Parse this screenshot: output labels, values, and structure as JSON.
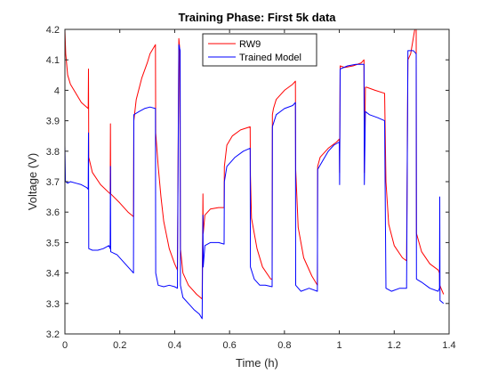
{
  "chart_data": {
    "type": "line",
    "title": "Training Phase: First 5k data",
    "xlabel": "Time (h)",
    "ylabel": "Voltage (V)",
    "xlim": [
      0,
      1.4
    ],
    "ylim": [
      3.2,
      4.2
    ],
    "xticks": [
      0,
      0.2,
      0.4,
      0.6,
      0.8,
      1,
      1.2,
      1.4
    ],
    "xtick_labels": [
      "0",
      "0.2",
      "0.4",
      "0.6",
      "0.8",
      "1",
      "1.2",
      "1.4"
    ],
    "yticks": [
      3.2,
      3.3,
      3.4,
      3.5,
      3.6,
      3.7,
      3.8,
      3.9,
      4.0,
      4.1,
      4.2
    ],
    "ytick_labels": [
      "3.2",
      "3.3",
      "3.4",
      "3.5",
      "3.6",
      "3.7",
      "3.8",
      "3.9",
      "4",
      "4.1",
      "4.2"
    ],
    "grid": false,
    "legend_position": "top-center",
    "series": [
      {
        "name": "RW9",
        "color": "#ff0000",
        "points": [
          [
            0,
            4.2
          ],
          [
            0.003,
            4.12
          ],
          [
            0.01,
            4.05
          ],
          [
            0.02,
            4.02
          ],
          [
            0.04,
            3.99
          ],
          [
            0.06,
            3.96
          ],
          [
            0.085,
            3.94
          ],
          [
            0.086,
            4.07
          ],
          [
            0.087,
            3.78
          ],
          [
            0.1,
            3.73
          ],
          [
            0.13,
            3.69
          ],
          [
            0.165,
            3.66
          ],
          [
            0.166,
            3.89
          ],
          [
            0.167,
            3.66
          ],
          [
            0.2,
            3.63
          ],
          [
            0.23,
            3.6
          ],
          [
            0.25,
            3.585
          ],
          [
            0.251,
            3.9
          ],
          [
            0.26,
            3.97
          ],
          [
            0.28,
            4.04
          ],
          [
            0.3,
            4.09
          ],
          [
            0.31,
            4.12
          ],
          [
            0.33,
            4.15
          ],
          [
            0.331,
            3.86
          ],
          [
            0.34,
            3.75
          ],
          [
            0.35,
            3.65
          ],
          [
            0.36,
            3.57
          ],
          [
            0.38,
            3.48
          ],
          [
            0.4,
            3.43
          ],
          [
            0.41,
            3.41
          ],
          [
            0.415,
            4.17
          ],
          [
            0.418,
            4.14
          ],
          [
            0.42,
            3.75
          ],
          [
            0.421,
            3.48
          ],
          [
            0.43,
            3.4
          ],
          [
            0.45,
            3.36
          ],
          [
            0.48,
            3.33
          ],
          [
            0.5,
            3.315
          ],
          [
            0.503,
            3.66
          ],
          [
            0.504,
            3.53
          ],
          [
            0.51,
            3.59
          ],
          [
            0.53,
            3.61
          ],
          [
            0.56,
            3.615
          ],
          [
            0.58,
            3.615
          ],
          [
            0.581,
            3.75
          ],
          [
            0.59,
            3.82
          ],
          [
            0.61,
            3.85
          ],
          [
            0.64,
            3.87
          ],
          [
            0.675,
            3.88
          ],
          [
            0.676,
            3.72
          ],
          [
            0.68,
            3.58
          ],
          [
            0.7,
            3.48
          ],
          [
            0.72,
            3.42
          ],
          [
            0.75,
            3.38
          ],
          [
            0.755,
            3.38
          ],
          [
            0.756,
            3.92
          ],
          [
            0.76,
            3.94
          ],
          [
            0.77,
            3.97
          ],
          [
            0.8,
            4.0
          ],
          [
            0.83,
            4.02
          ],
          [
            0.84,
            4.03
          ],
          [
            0.841,
            3.74
          ],
          [
            0.85,
            3.55
          ],
          [
            0.87,
            3.45
          ],
          [
            0.9,
            3.39
          ],
          [
            0.92,
            3.36
          ],
          [
            0.921,
            3.75
          ],
          [
            0.93,
            3.78
          ],
          [
            0.96,
            3.81
          ],
          [
            0.99,
            3.83
          ],
          [
            1.0,
            3.84
          ],
          [
            1.001,
            3.73
          ],
          [
            1.003,
            4.08
          ],
          [
            1.02,
            4.075
          ],
          [
            1.05,
            4.08
          ],
          [
            1.08,
            4.09
          ],
          [
            1.09,
            4.1
          ],
          [
            1.091,
            3.73
          ],
          [
            1.095,
            4.01
          ],
          [
            1.1,
            4.01
          ],
          [
            1.13,
            4.0
          ],
          [
            1.165,
            3.99
          ],
          [
            1.17,
            3.7
          ],
          [
            1.18,
            3.56
          ],
          [
            1.2,
            3.49
          ],
          [
            1.23,
            3.45
          ],
          [
            1.245,
            3.44
          ],
          [
            1.25,
            4.1
          ],
          [
            1.26,
            4.12
          ],
          [
            1.275,
            4.2
          ],
          [
            1.28,
            4.2
          ],
          [
            1.281,
            3.53
          ],
          [
            1.3,
            3.47
          ],
          [
            1.33,
            3.43
          ],
          [
            1.36,
            3.41
          ],
          [
            1.365,
            3.4
          ],
          [
            1.366,
            3.36
          ],
          [
            1.38,
            3.33
          ]
        ]
      },
      {
        "name": "Trained Model",
        "color": "#0000ff",
        "points": [
          [
            0,
            3.82
          ],
          [
            0.002,
            3.7
          ],
          [
            0.01,
            3.695
          ],
          [
            0.02,
            3.7
          ],
          [
            0.04,
            3.695
          ],
          [
            0.06,
            3.69
          ],
          [
            0.08,
            3.68
          ],
          [
            0.085,
            3.675
          ],
          [
            0.086,
            3.86
          ],
          [
            0.087,
            3.48
          ],
          [
            0.1,
            3.475
          ],
          [
            0.12,
            3.475
          ],
          [
            0.14,
            3.48
          ],
          [
            0.16,
            3.49
          ],
          [
            0.165,
            3.48
          ],
          [
            0.166,
            3.75
          ],
          [
            0.167,
            3.47
          ],
          [
            0.19,
            3.46
          ],
          [
            0.21,
            3.44
          ],
          [
            0.23,
            3.42
          ],
          [
            0.25,
            3.4
          ],
          [
            0.251,
            3.92
          ],
          [
            0.27,
            3.93
          ],
          [
            0.29,
            3.94
          ],
          [
            0.31,
            3.945
          ],
          [
            0.33,
            3.94
          ],
          [
            0.331,
            3.4
          ],
          [
            0.34,
            3.36
          ],
          [
            0.36,
            3.355
          ],
          [
            0.38,
            3.36
          ],
          [
            0.4,
            3.355
          ],
          [
            0.41,
            3.35
          ],
          [
            0.415,
            4.15
          ],
          [
            0.42,
            4.13
          ],
          [
            0.421,
            3.36
          ],
          [
            0.43,
            3.32
          ],
          [
            0.45,
            3.3
          ],
          [
            0.47,
            3.28
          ],
          [
            0.49,
            3.265
          ],
          [
            0.5,
            3.25
          ],
          [
            0.503,
            3.59
          ],
          [
            0.504,
            3.42
          ],
          [
            0.51,
            3.49
          ],
          [
            0.53,
            3.5
          ],
          [
            0.56,
            3.5
          ],
          [
            0.58,
            3.495
          ],
          [
            0.581,
            3.7
          ],
          [
            0.59,
            3.75
          ],
          [
            0.62,
            3.78
          ],
          [
            0.65,
            3.8
          ],
          [
            0.675,
            3.81
          ],
          [
            0.676,
            3.42
          ],
          [
            0.69,
            3.38
          ],
          [
            0.71,
            3.36
          ],
          [
            0.73,
            3.36
          ],
          [
            0.755,
            3.355
          ],
          [
            0.756,
            3.88
          ],
          [
            0.77,
            3.92
          ],
          [
            0.8,
            3.94
          ],
          [
            0.83,
            3.95
          ],
          [
            0.84,
            3.96
          ],
          [
            0.841,
            3.36
          ],
          [
            0.86,
            3.34
          ],
          [
            0.89,
            3.35
          ],
          [
            0.92,
            3.34
          ],
          [
            0.921,
            3.74
          ],
          [
            0.94,
            3.77
          ],
          [
            0.96,
            3.8
          ],
          [
            0.98,
            3.82
          ],
          [
            1.0,
            3.83
          ],
          [
            1.001,
            3.69
          ],
          [
            1.003,
            4.07
          ],
          [
            1.03,
            4.08
          ],
          [
            1.06,
            4.085
          ],
          [
            1.09,
            4.085
          ],
          [
            1.091,
            3.69
          ],
          [
            1.095,
            3.93
          ],
          [
            1.11,
            3.92
          ],
          [
            1.14,
            3.91
          ],
          [
            1.165,
            3.9
          ],
          [
            1.17,
            3.35
          ],
          [
            1.19,
            3.34
          ],
          [
            1.22,
            3.35
          ],
          [
            1.245,
            3.35
          ],
          [
            1.25,
            4.13
          ],
          [
            1.27,
            4.13
          ],
          [
            1.28,
            4.12
          ],
          [
            1.281,
            3.38
          ],
          [
            1.3,
            3.37
          ],
          [
            1.33,
            3.35
          ],
          [
            1.36,
            3.34
          ],
          [
            1.365,
            3.35
          ],
          [
            1.366,
            3.65
          ],
          [
            1.367,
            3.31
          ],
          [
            1.38,
            3.3
          ]
        ]
      }
    ]
  }
}
